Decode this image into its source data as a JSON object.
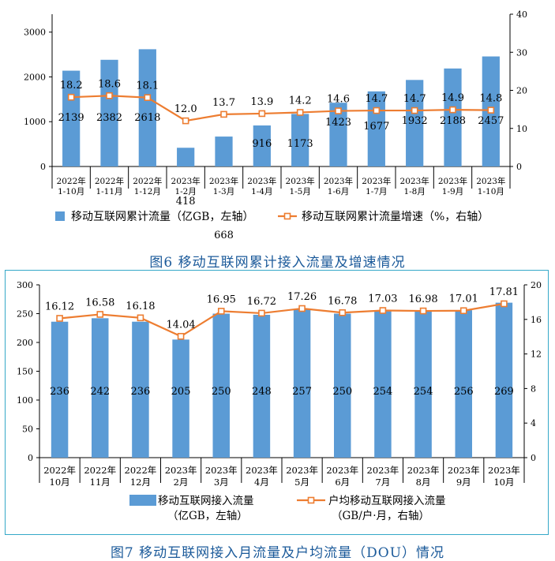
{
  "figure6": {
    "caption": "图6   移动互联网累计接入流量及增速情况",
    "chart_data": {
      "type": "bar",
      "categories": [
        [
          "2022年",
          "1-10月"
        ],
        [
          "2022年",
          "1-11月"
        ],
        [
          "2022年",
          "1-12月"
        ],
        [
          "2023年",
          "1-2月"
        ],
        [
          "2023年",
          "1-3月"
        ],
        [
          "2023年",
          "1-4月"
        ],
        [
          "2023年",
          "1-5月"
        ],
        [
          "2023年",
          "1-6月"
        ],
        [
          "2023年",
          "1-7月"
        ],
        [
          "2023年",
          "1-8月"
        ],
        [
          "2023年",
          "1-9月"
        ],
        [
          "2023年",
          "1-10月"
        ]
      ],
      "series": [
        {
          "name": "移动互联网累计流量（亿GB，左轴）",
          "type": "bar",
          "axis": "left",
          "values": [
            2139,
            2382,
            2618,
            418,
            668,
            916,
            1173,
            1423,
            1677,
            1932,
            2188,
            2457
          ]
        },
        {
          "name": "移动互联网累计流量增速（%，右轴）",
          "type": "line",
          "axis": "right",
          "values": [
            18.2,
            18.6,
            18.1,
            12.0,
            13.7,
            13.9,
            14.2,
            14.6,
            14.7,
            14.7,
            14.9,
            14.8
          ]
        }
      ],
      "bar_labels": [
        "2139",
        "2382",
        "2618",
        "418",
        "668",
        "916",
        "1173",
        "1423",
        "1677",
        "1932",
        "2188",
        "2457"
      ],
      "line_labels": [
        "18.2",
        "18.6",
        "18.1",
        "12.0",
        "13.7",
        "13.9",
        "14.2",
        "14.6",
        "14.7",
        "14.7",
        "14.9",
        "14.8"
      ],
      "left_axis": {
        "ylim": [
          0,
          3400
        ],
        "ticks": [
          0,
          1000,
          2000,
          3000
        ]
      },
      "right_axis": {
        "ylim": [
          0,
          40
        ],
        "ticks": [
          0,
          10,
          20,
          30,
          40
        ]
      },
      "legend": [
        "移动互联网累计流量（亿GB，左轴）",
        "移动互联网累计流量增速（%，右轴）"
      ],
      "colors": {
        "bar": "#5b9bd5",
        "line": "#ed7d31",
        "marker_fill": "#ffffff"
      }
    }
  },
  "figure7": {
    "caption": "图7   移动互联网接入月流量及户均流量（DOU）情况",
    "chart_data": {
      "type": "bar",
      "categories": [
        [
          "2022年",
          "10月"
        ],
        [
          "2022年",
          "11月"
        ],
        [
          "2022年",
          "12月"
        ],
        [
          "2023年",
          "2月"
        ],
        [
          "2023年",
          "3月"
        ],
        [
          "2023年",
          "4月"
        ],
        [
          "2023年",
          "5月"
        ],
        [
          "2023年",
          "6月"
        ],
        [
          "2023年",
          "7月"
        ],
        [
          "2023年",
          "8月"
        ],
        [
          "2023年",
          "9月"
        ],
        [
          "2023年",
          "10月"
        ]
      ],
      "series": [
        {
          "name": "移动互联网接入流量（亿GB，左轴）",
          "type": "bar",
          "axis": "left",
          "values": [
            236,
            242,
            236,
            205,
            250,
            248,
            257,
            250,
            254,
            254,
            256,
            269
          ]
        },
        {
          "name": "户均移动互联网接入流量（GB/户·月，右轴）",
          "type": "line",
          "axis": "right",
          "values": [
            16.12,
            16.58,
            16.18,
            14.04,
            16.95,
            16.72,
            17.26,
            16.78,
            17.03,
            16.98,
            17.01,
            17.81
          ]
        }
      ],
      "bar_labels": [
        "236",
        "242",
        "236",
        "205",
        "250",
        "248",
        "257",
        "250",
        "254",
        "254",
        "256",
        "269"
      ],
      "line_labels": [
        "16.12",
        "16.58",
        "16.18",
        "14.04",
        "16.95",
        "16.72",
        "17.26",
        "16.78",
        "17.03",
        "16.98",
        "17.01",
        "17.81"
      ],
      "left_axis": {
        "ylim": [
          0,
          300
        ],
        "ticks": [
          0,
          50,
          100,
          150,
          200,
          250,
          300
        ]
      },
      "right_axis": {
        "ylim": [
          0,
          20
        ],
        "ticks": [
          0,
          4,
          8,
          12,
          16,
          20
        ]
      },
      "legend": [
        [
          "移动互联网接入流量",
          "（亿GB，左轴）"
        ],
        [
          "户均移动互联网接入流量",
          "（GB/户·月，右轴）"
        ]
      ],
      "colors": {
        "bar": "#5b9bd5",
        "line": "#ed7d31",
        "marker_fill": "#ffffff"
      }
    }
  }
}
